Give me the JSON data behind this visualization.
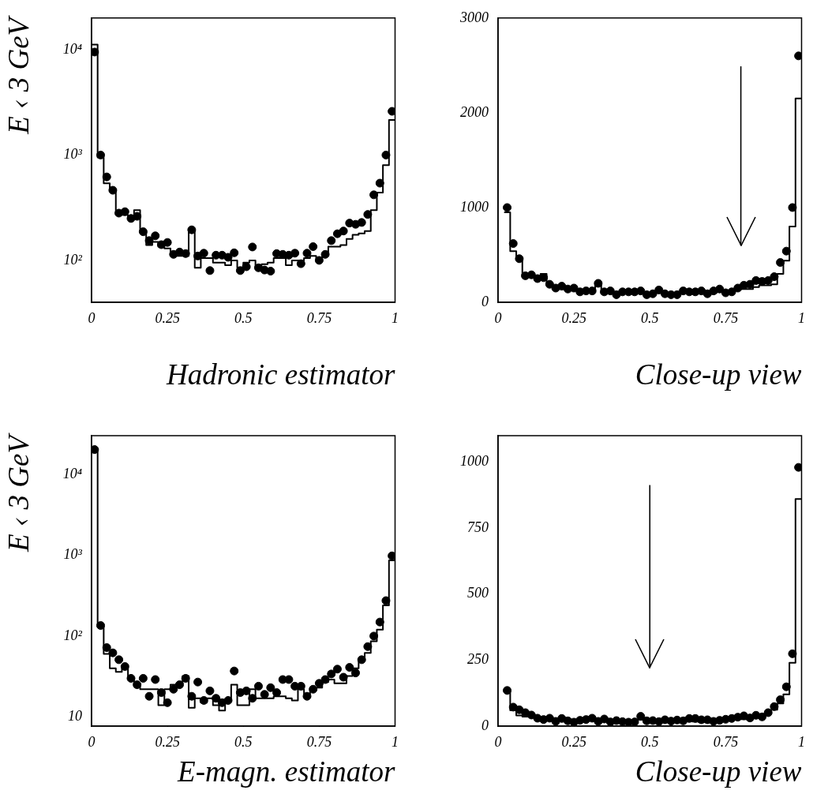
{
  "chart_data": [
    {
      "type": "histogram",
      "ylabel": "E ‹ 3 GeV",
      "xlabel": "Hadronic estimator",
      "log": true,
      "xlim": [
        0,
        1
      ],
      "ylim": [
        40,
        20000
      ],
      "xticks": [
        0,
        0.25,
        0.5,
        0.75,
        1
      ],
      "yticks": [
        {
          "value": 100,
          "label": "10²"
        },
        {
          "value": 1000,
          "label": "10³"
        },
        {
          "value": 10000,
          "label": "10⁴"
        }
      ],
      "bins": [
        0,
        0.02,
        0.04,
        0.06,
        0.08,
        0.1,
        0.12,
        0.14,
        0.16,
        0.18,
        0.2,
        0.22,
        0.24,
        0.26,
        0.28,
        0.3,
        0.32,
        0.34,
        0.36,
        0.38,
        0.4,
        0.42,
        0.44,
        0.46,
        0.48,
        0.5,
        0.52,
        0.54,
        0.56,
        0.58,
        0.6,
        0.62,
        0.64,
        0.66,
        0.68,
        0.7,
        0.72,
        0.74,
        0.76,
        0.78,
        0.8,
        0.82,
        0.84,
        0.86,
        0.88,
        0.9,
        0.92,
        0.94,
        0.96,
        0.98,
        1
      ],
      "series": [
        {
          "type": "histogram",
          "color": "#000000",
          "values": [
            11200,
            950,
            540,
            470,
            270,
            270,
            250,
            300,
            190,
            140,
            150,
            135,
            130,
            115,
            110,
            110,
            190,
            85,
            105,
            105,
            95,
            95,
            90,
            100,
            85,
            95,
            100,
            85,
            92,
            95,
            105,
            105,
            90,
            100,
            100,
            105,
            110,
            105,
            110,
            135,
            135,
            140,
            160,
            175,
            180,
            190,
            300,
            440,
            800,
            2150
          ]
        },
        {
          "type": "scatter",
          "color": "#000000",
          "marker": "circle",
          "x": [
            0.01,
            0.03,
            0.05,
            0.07,
            0.09,
            0.11,
            0.13,
            0.15,
            0.17,
            0.19,
            0.21,
            0.23,
            0.25,
            0.27,
            0.29,
            0.31,
            0.33,
            0.35,
            0.37,
            0.39,
            0.41,
            0.43,
            0.45,
            0.47,
            0.49,
            0.51,
            0.53,
            0.55,
            0.57,
            0.59,
            0.61,
            0.63,
            0.65,
            0.67,
            0.69,
            0.71,
            0.73,
            0.75,
            0.77,
            0.79,
            0.81,
            0.83,
            0.85,
            0.87,
            0.89,
            0.91,
            0.93,
            0.95,
            0.97,
            0.99
          ],
          "values": [
            9500,
            1000,
            620,
            463,
            281,
            290,
            250,
            262,
            187,
            154,
            171,
            141,
            148,
            114,
            120,
            116,
            195,
            110,
            117,
            80,
            112,
            112,
            107,
            118,
            80,
            87,
            134,
            85,
            81,
            79,
            116,
            114,
            112,
            117,
            93,
            117,
            135,
            100,
            114,
            154,
            179,
            190,
            226,
            220,
            229,
            273,
            419,
            541,
            1000,
            2600
          ]
        }
      ]
    },
    {
      "type": "histogram",
      "xlabel": "Close-up view",
      "ref_lines": [
        {
          "axis": "x",
          "value": 0.8
        }
      ],
      "xlim": [
        0,
        1
      ],
      "ylim": [
        0,
        3000
      ],
      "xticks": [
        0,
        0.25,
        0.5,
        0.75,
        1
      ],
      "yticks": [
        0,
        1000,
        2000,
        3000
      ],
      "bins": [
        0.02,
        0.04,
        0.06,
        0.08,
        0.1,
        0.12,
        0.14,
        0.16,
        0.18,
        0.2,
        0.22,
        0.24,
        0.26,
        0.28,
        0.3,
        0.32,
        0.34,
        0.36,
        0.38,
        0.4,
        0.42,
        0.44,
        0.46,
        0.48,
        0.5,
        0.52,
        0.54,
        0.56,
        0.58,
        0.6,
        0.62,
        0.64,
        0.66,
        0.68,
        0.7,
        0.72,
        0.74,
        0.76,
        0.78,
        0.8,
        0.82,
        0.84,
        0.86,
        0.88,
        0.9,
        0.92,
        0.94,
        0.96,
        0.98,
        1
      ],
      "series": [
        {
          "type": "histogram",
          "color": "#000000",
          "values": [
            950,
            540,
            470,
            270,
            270,
            250,
            300,
            190,
            140,
            150,
            140,
            130,
            120,
            110,
            110,
            190,
            90,
            100,
            100,
            100,
            100,
            90,
            100,
            90,
            100,
            100,
            90,
            90,
            100,
            100,
            100,
            90,
            100,
            100,
            100,
            110,
            100,
            110,
            140,
            140,
            140,
            160,
            180,
            180,
            190,
            300,
            440,
            800,
            2150
          ]
        },
        {
          "type": "scatter",
          "color": "#000000",
          "marker": "circle",
          "x": [
            0.03,
            0.05,
            0.07,
            0.09,
            0.11,
            0.13,
            0.15,
            0.17,
            0.19,
            0.21,
            0.23,
            0.25,
            0.27,
            0.29,
            0.31,
            0.33,
            0.35,
            0.37,
            0.39,
            0.41,
            0.43,
            0.45,
            0.47,
            0.49,
            0.51,
            0.53,
            0.55,
            0.57,
            0.59,
            0.61,
            0.63,
            0.65,
            0.67,
            0.69,
            0.71,
            0.73,
            0.75,
            0.77,
            0.79,
            0.81,
            0.83,
            0.85,
            0.87,
            0.89,
            0.91,
            0.93,
            0.95,
            0.97,
            0.99
          ],
          "values": [
            1000,
            620,
            460,
            280,
            290,
            250,
            260,
            190,
            150,
            170,
            140,
            150,
            110,
            120,
            120,
            200,
            110,
            120,
            80,
            110,
            110,
            110,
            120,
            80,
            90,
            130,
            90,
            80,
            80,
            120,
            110,
            110,
            120,
            90,
            120,
            140,
            100,
            110,
            150,
            180,
            190,
            230,
            220,
            230,
            270,
            420,
            540,
            1000,
            2600
          ]
        }
      ]
    },
    {
      "type": "histogram",
      "ylabel": "E ‹ 3 GeV",
      "xlabel": "E-magn. estimator",
      "log": true,
      "xlim": [
        0,
        1
      ],
      "ylim": [
        7.7,
        30000
      ],
      "xticks": [
        0,
        0.25,
        0.5,
        0.75,
        1
      ],
      "yticks": [
        10,
        {
          "value": 100,
          "label": "10²"
        },
        {
          "value": 1000,
          "label": "10³"
        },
        {
          "value": 10000,
          "label": "10⁴"
        }
      ],
      "bins": [
        0,
        0.02,
        0.04,
        0.06,
        0.08,
        0.1,
        0.12,
        0.14,
        0.16,
        0.18,
        0.2,
        0.22,
        0.24,
        0.26,
        0.28,
        0.3,
        0.32,
        0.34,
        0.36,
        0.38,
        0.4,
        0.42,
        0.44,
        0.46,
        0.48,
        0.5,
        0.52,
        0.54,
        0.56,
        0.58,
        0.6,
        0.62,
        0.64,
        0.66,
        0.68,
        0.7,
        0.72,
        0.74,
        0.76,
        0.78,
        0.8,
        0.82,
        0.84,
        0.86,
        0.88,
        0.9,
        0.92,
        0.94,
        0.96,
        0.98,
        1
      ],
      "series": [
        {
          "type": "histogram",
          "color": "#000000",
          "values": [
            20000,
            130,
            60,
            40,
            36,
            40,
            30,
            25,
            22,
            22,
            22,
            14,
            22,
            25,
            26,
            32,
            13,
            17,
            15,
            17,
            14,
            12,
            16,
            25,
            14,
            14,
            22,
            17,
            17,
            17,
            18,
            18,
            17,
            16,
            22,
            19,
            22,
            23,
            27,
            29,
            26,
            26,
            32,
            40,
            52,
            62,
            86,
            120,
            240,
            860
          ]
        },
        {
          "type": "scatter",
          "color": "#000000",
          "marker": "circle",
          "x": [
            0.01,
            0.03,
            0.05,
            0.07,
            0.09,
            0.11,
            0.13,
            0.15,
            0.17,
            0.19,
            0.21,
            0.23,
            0.25,
            0.27,
            0.29,
            0.31,
            0.33,
            0.35,
            0.37,
            0.39,
            0.41,
            0.43,
            0.45,
            0.47,
            0.49,
            0.51,
            0.53,
            0.55,
            0.57,
            0.59,
            0.61,
            0.63,
            0.65,
            0.67,
            0.69,
            0.71,
            0.73,
            0.75,
            0.77,
            0.79,
            0.81,
            0.83,
            0.85,
            0.87,
            0.89,
            0.91,
            0.93,
            0.95,
            0.97,
            0.99
          ],
          "values": [
            20200,
            135,
            72,
            62,
            51,
            42,
            30,
            25,
            30,
            18,
            29,
            20,
            15,
            22,
            25,
            30,
            18,
            27,
            16,
            21,
            17,
            15,
            16,
            37,
            20,
            21,
            17,
            24,
            19,
            23,
            20,
            29,
            29,
            24,
            24,
            18,
            22,
            26,
            29,
            34,
            39,
            31,
            41,
            35,
            51,
            74,
            100,
            149,
            274,
            980
          ]
        }
      ]
    },
    {
      "type": "histogram",
      "xlabel": "Close-up view",
      "ref_lines": [
        {
          "axis": "x",
          "value": 0.5
        }
      ],
      "xlim": [
        0,
        1
      ],
      "ylim": [
        0,
        1100
      ],
      "xticks": [
        0,
        0.25,
        0.5,
        0.75,
        1
      ],
      "yticks": [
        0,
        250,
        500,
        750,
        1000
      ],
      "bins": [
        0.02,
        0.04,
        0.06,
        0.08,
        0.1,
        0.12,
        0.14,
        0.16,
        0.18,
        0.2,
        0.22,
        0.24,
        0.26,
        0.28,
        0.3,
        0.32,
        0.34,
        0.36,
        0.38,
        0.4,
        0.42,
        0.44,
        0.46,
        0.48,
        0.5,
        0.52,
        0.54,
        0.56,
        0.58,
        0.6,
        0.62,
        0.64,
        0.66,
        0.68,
        0.7,
        0.72,
        0.74,
        0.76,
        0.78,
        0.8,
        0.82,
        0.84,
        0.86,
        0.88,
        0.9,
        0.92,
        0.94,
        0.96,
        0.98,
        1
      ],
      "series": [
        {
          "type": "histogram",
          "color": "#000000",
          "values": [
            130,
            60,
            40,
            36,
            40,
            30,
            25,
            22,
            22,
            22,
            14,
            22,
            25,
            26,
            32,
            13,
            17,
            15,
            17,
            14,
            12,
            16,
            25,
            14,
            14,
            22,
            17,
            17,
            17,
            18,
            18,
            17,
            16,
            22,
            19,
            22,
            23,
            27,
            29,
            26,
            26,
            32,
            40,
            52,
            62,
            86,
            120,
            240,
            860
          ]
        },
        {
          "type": "scatter",
          "color": "#000000",
          "marker": "circle",
          "x": [
            0.03,
            0.05,
            0.07,
            0.09,
            0.11,
            0.13,
            0.15,
            0.17,
            0.19,
            0.21,
            0.23,
            0.25,
            0.27,
            0.29,
            0.31,
            0.33,
            0.35,
            0.37,
            0.39,
            0.41,
            0.43,
            0.45,
            0.47,
            0.49,
            0.51,
            0.53,
            0.55,
            0.57,
            0.59,
            0.61,
            0.63,
            0.65,
            0.67,
            0.69,
            0.71,
            0.73,
            0.75,
            0.77,
            0.79,
            0.81,
            0.83,
            0.85,
            0.87,
            0.89,
            0.91,
            0.93,
            0.95,
            0.97,
            0.99
          ],
          "values": [
            135,
            72,
            62,
            51,
            42,
            30,
            25,
            30,
            18,
            29,
            20,
            15,
            22,
            25,
            30,
            18,
            27,
            16,
            21,
            17,
            15,
            16,
            37,
            20,
            21,
            17,
            24,
            19,
            23,
            20,
            29,
            29,
            24,
            24,
            18,
            22,
            26,
            29,
            34,
            39,
            31,
            41,
            35,
            51,
            74,
            100,
            149,
            274,
            980
          ]
        }
      ]
    }
  ]
}
